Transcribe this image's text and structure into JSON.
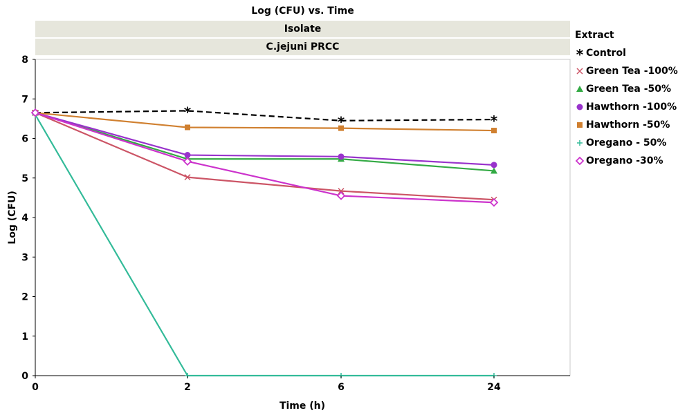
{
  "chart_data": {
    "type": "line",
    "title": "Log (CFU) vs. Time",
    "facet_header": "Isolate",
    "facet_value": "C.jejuni PRCC",
    "xlabel": "Time (h)",
    "ylabel": "Log (CFU)",
    "categories": [
      "0",
      "2",
      "6",
      "24"
    ],
    "ylim": [
      0,
      8
    ],
    "yticks": [
      "0",
      "1",
      "2",
      "3",
      "4",
      "5",
      "6",
      "7",
      "8"
    ],
    "legend_title": "Extract",
    "legend_position": "right",
    "grid": false,
    "series": [
      {
        "name": "Control",
        "values": [
          6.65,
          6.7,
          6.45,
          6.48
        ],
        "color": "#000000",
        "marker": "asterisk",
        "dashed": true
      },
      {
        "name": "Green Tea -100%",
        "values": [
          6.65,
          5.02,
          4.67,
          4.45
        ],
        "color": "#cc5566",
        "marker": "x",
        "dashed": false
      },
      {
        "name": "Green Tea -50%",
        "values": [
          6.65,
          5.48,
          5.48,
          5.18
        ],
        "color": "#33aa44",
        "marker": "triangle",
        "dashed": false
      },
      {
        "name": "Hawthorn -100%",
        "values": [
          6.65,
          5.58,
          5.54,
          5.33
        ],
        "color": "#9933cc",
        "marker": "circle",
        "dashed": false
      },
      {
        "name": "Hawthorn -50%",
        "values": [
          6.65,
          6.28,
          6.26,
          6.2
        ],
        "color": "#d08030",
        "marker": "square",
        "dashed": false
      },
      {
        "name": "Oregano - 50%",
        "values": [
          6.6,
          0.0,
          0.0,
          0.0
        ],
        "color": "#33bb99",
        "marker": "plus",
        "dashed": false
      },
      {
        "name": "Oregano -30%",
        "values": [
          6.65,
          5.42,
          4.55,
          4.38
        ],
        "color": "#cc33cc",
        "marker": "diamond",
        "dashed": false
      }
    ]
  }
}
